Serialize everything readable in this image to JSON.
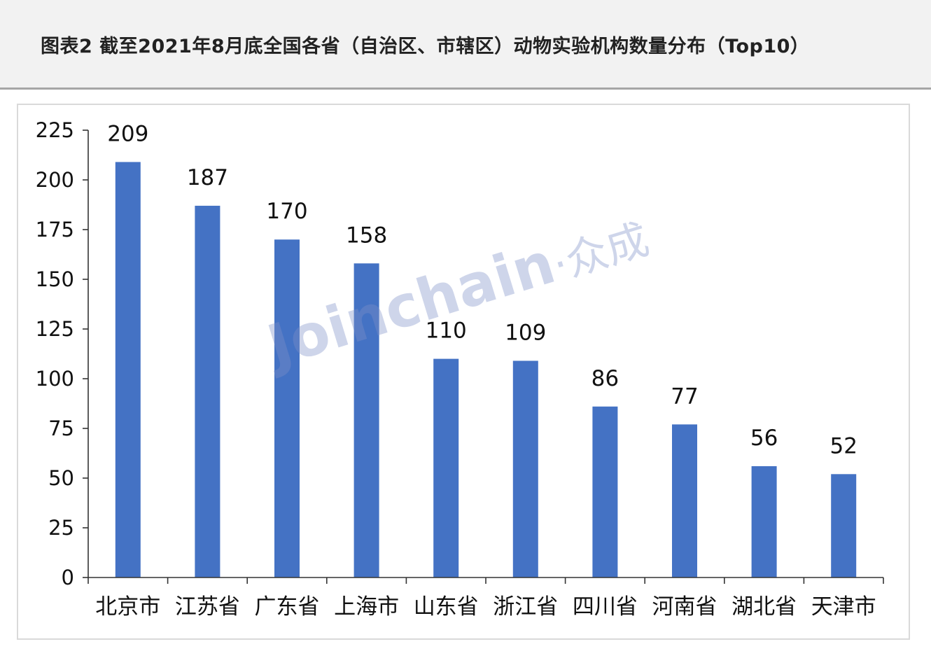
{
  "header": {
    "title": "图表2  截至2021年8月底全国各省（自治区、市辖区）动物实验机构数量分布（Top10）"
  },
  "watermark": {
    "latin": "Joinchain",
    "cn": "众成"
  },
  "chart_data": {
    "type": "bar",
    "title": "",
    "xlabel": "",
    "ylabel": "",
    "categories": [
      "北京市",
      "江苏省",
      "广东省",
      "上海市",
      "山东省",
      "浙江省",
      "四川省",
      "河南省",
      "湖北省",
      "天津市"
    ],
    "values": [
      209,
      187,
      170,
      158,
      110,
      109,
      86,
      77,
      56,
      52
    ],
    "data_labels": [
      "209",
      "187",
      "170",
      "158",
      "110",
      "109",
      "86",
      "77",
      "56",
      "52"
    ],
    "ylim": [
      0,
      225
    ],
    "yticks": [
      0,
      25,
      50,
      75,
      100,
      125,
      150,
      175,
      200,
      225
    ],
    "ytick_labels": [
      "0",
      "25",
      "50",
      "75",
      "100",
      "125",
      "150",
      "175",
      "200",
      "225"
    ],
    "grid": false,
    "legend": "none",
    "bar_color": "#4472c4"
  }
}
